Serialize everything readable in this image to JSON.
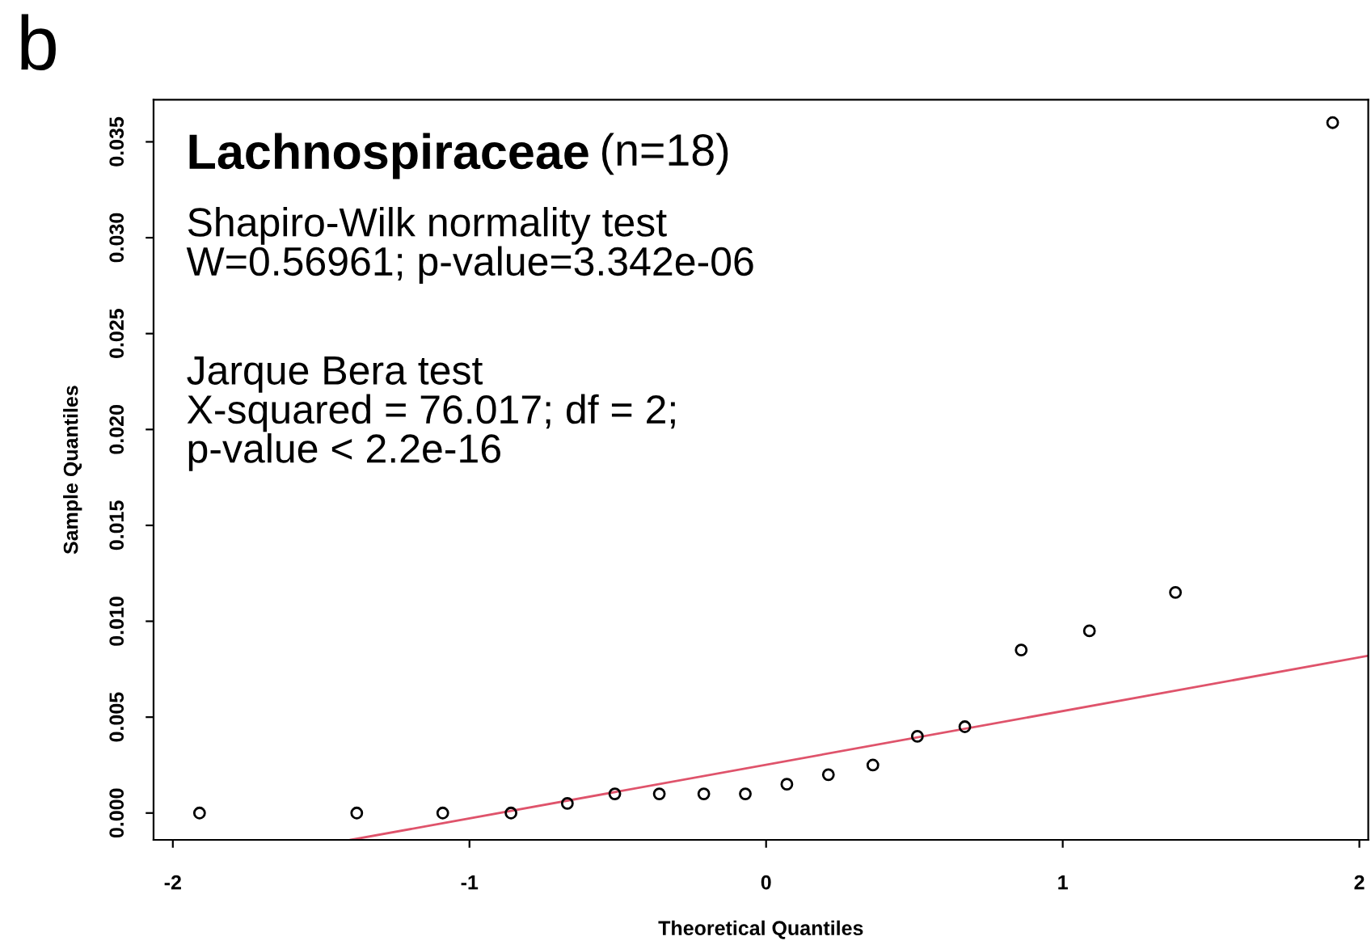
{
  "chart_data": {
    "type": "scatter",
    "xlabel": "Theoretical Quantiles",
    "ylabel": "Sample Quantiles",
    "annotations": [
      "b",
      "Lachnospiraceae",
      "(n=18)",
      "Shapiro-Wilk normality test\nW=0.56961; p-value=3.342e-06",
      "Jarque Bera test\nX-squared = 76.017; df = 2;\np-value < 2.2e-16"
    ],
    "series": [
      {
        "color": "#000000",
        "marker": "circle",
        "x": [
          -1.91,
          -1.38,
          -1.09,
          -0.86,
          -0.67,
          -0.51,
          -0.36,
          -0.21,
          -0.07,
          0.07,
          0.21,
          0.36,
          0.51,
          0.67,
          0.86,
          1.09,
          1.38,
          1.91
        ],
        "values": [
          0,
          0,
          0,
          0,
          0.0005,
          0.001,
          0.001,
          0.001,
          0.001,
          0.0015,
          0.002,
          0.0025,
          0.004,
          0.0045,
          0.0085,
          0.0095,
          0.0115,
          0.036
        ]
      },
      {
        "type": "line",
        "color": "#df536b",
        "marker": "none",
        "line_style": "solid",
        "x": [
          -1.4,
          2.03
        ],
        "values": [
          -0.0014,
          0.0082
        ]
      }
    ],
    "xlim": [
      -2.065,
      2.03
    ],
    "ylim": [
      -0.0014,
      0.0372
    ],
    "xticks": [
      -2,
      -1,
      0,
      1,
      2
    ],
    "yticks": [
      {
        "value": 0,
        "label": "0.000"
      },
      {
        "value": 0.005,
        "label": "0.005"
      },
      {
        "value": 0.01,
        "label": "0.010"
      },
      {
        "value": 0.015,
        "label": "0.015"
      },
      {
        "value": 0.02,
        "label": "0.020"
      },
      {
        "value": 0.025,
        "label": "0.025"
      },
      {
        "value": 0.03,
        "label": "0.030"
      },
      {
        "value": 0.035,
        "label": "0.035"
      }
    ],
    "grid": false,
    "legend": false
  }
}
